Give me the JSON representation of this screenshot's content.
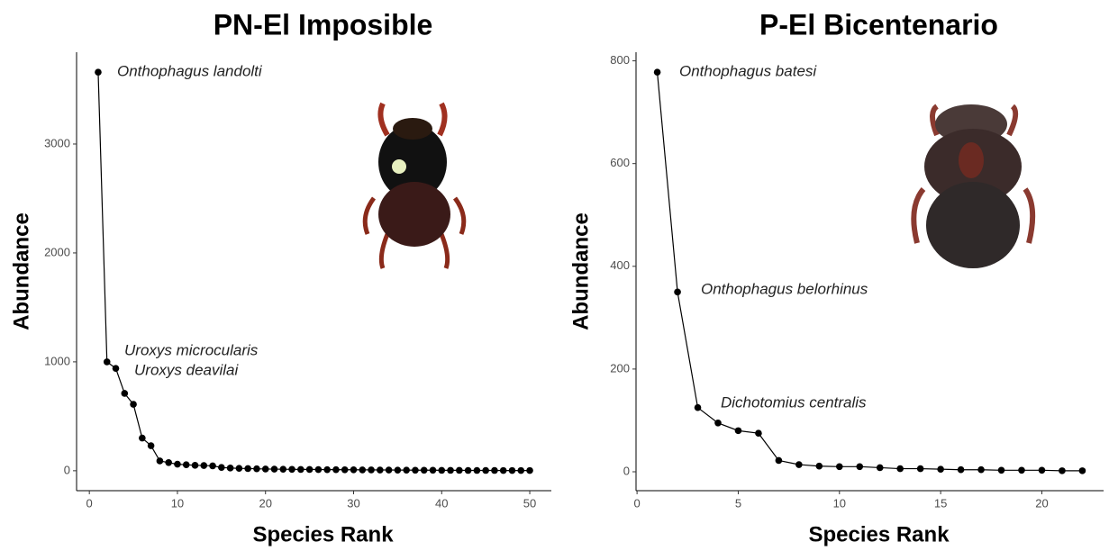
{
  "chart_data": [
    {
      "type": "line",
      "title": "PN-El Imposible",
      "x_label": "Species Rank",
      "y_label": "Abundance",
      "x": [
        1,
        2,
        3,
        4,
        5,
        6,
        7,
        8,
        9,
        10,
        11,
        12,
        13,
        14,
        15,
        16,
        17,
        18,
        19,
        20,
        21,
        22,
        23,
        24,
        25,
        26,
        27,
        28,
        29,
        30,
        31,
        32,
        33,
        34,
        35,
        36,
        37,
        38,
        39,
        40,
        41,
        42,
        43,
        44,
        45,
        46,
        47,
        48,
        49,
        50
      ],
      "values": [
        3660,
        1000,
        940,
        710,
        610,
        300,
        230,
        90,
        75,
        60,
        55,
        50,
        48,
        45,
        30,
        25,
        22,
        20,
        18,
        16,
        15,
        14,
        13,
        12,
        12,
        11,
        10,
        10,
        9,
        9,
        8,
        8,
        7,
        7,
        6,
        6,
        5,
        5,
        5,
        4,
        4,
        4,
        3,
        3,
        3,
        3,
        2,
        2,
        2,
        2
      ],
      "color": "#000000",
      "annotations": [
        "Onthophagus landolti",
        "Uroxys microcularis",
        "Uroxys deavilai"
      ],
      "xlim": [
        -1.45,
        52.45
      ],
      "xticks": [
        0,
        10,
        20,
        30,
        40,
        50
      ],
      "ylim": [
        -183,
        3843
      ],
      "yticks": [
        0,
        1000,
        2000,
        3000
      ]
    },
    {
      "type": "line",
      "title": "P-El Bicentenario",
      "x_label": "Species Rank",
      "y_label": "Abundance",
      "x": [
        1,
        2,
        3,
        4,
        5,
        6,
        7,
        8,
        9,
        10,
        11,
        12,
        13,
        14,
        15,
        16,
        17,
        18,
        19,
        20,
        21,
        22
      ],
      "values": [
        778,
        350,
        125,
        95,
        80,
        75,
        22,
        14,
        11,
        10,
        10,
        8,
        6,
        6,
        5,
        4,
        4,
        3,
        3,
        3,
        2,
        2
      ],
      "color": "#000000",
      "annotations": [
        "Onthophagus batesi",
        "Onthophagus belorhinus",
        "Dichotomius centralis"
      ],
      "xlim": [
        -0.05,
        23.05
      ],
      "xticks": [
        0,
        5,
        10,
        15,
        20
      ],
      "ylim": [
        -36.8,
        816.8
      ],
      "yticks": [
        0,
        200,
        400,
        600,
        800
      ]
    }
  ]
}
